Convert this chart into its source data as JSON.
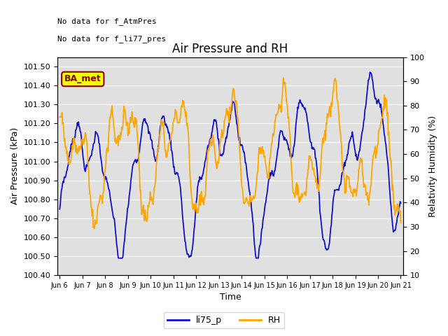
{
  "title": "Air Pressure and RH",
  "xlabel": "Time",
  "ylabel_left": "Air Pressure (kPa)",
  "ylabel_right": "Relativity Humidity (%)",
  "text_no_data_1": "No data for f_AtmPres",
  "text_no_data_2": "No data for f_li77_pres",
  "legend_label_blue": "li75_p",
  "legend_label_orange": "RH",
  "ba_met_label": "BA_met",
  "ylim_left": [
    100.4,
    101.55
  ],
  "ylim_right": [
    10,
    100
  ],
  "yticks_left": [
    100.4,
    100.5,
    100.6,
    100.7,
    100.8,
    100.9,
    101.0,
    101.1,
    101.2,
    101.3,
    101.4,
    101.5
  ],
  "yticks_right": [
    10,
    20,
    30,
    40,
    50,
    60,
    70,
    80,
    90,
    100
  ],
  "color_blue": "#1010CC",
  "color_orange": "#FFA500",
  "color_ba_met_bg": "#FFFF00",
  "color_ba_met_border": "#8B0000",
  "background_plot": "#E0E0E0",
  "x_tick_labels": [
    "Jun 6",
    "Jun 7",
    "Jun 8",
    "Jun 9",
    "Jun 10",
    "Jun 11",
    "Jun 12",
    "Jun 13",
    "Jun 14",
    "Jun 15",
    "Jun 16",
    "Jun 17",
    "Jun 18",
    "Jun 19",
    "Jun 20",
    "Jun 21"
  ],
  "num_points": 600,
  "font_size": 9,
  "title_fontsize": 12
}
